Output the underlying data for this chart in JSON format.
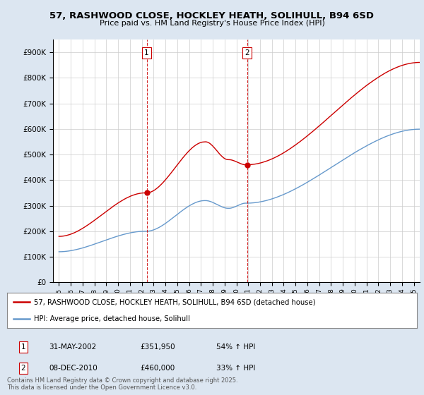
{
  "title": "57, RASHWOOD CLOSE, HOCKLEY HEATH, SOLIHULL, B94 6SD",
  "subtitle": "Price paid vs. HM Land Registry's House Price Index (HPI)",
  "legend_line1": "57, RASHWOOD CLOSE, HOCKLEY HEATH, SOLIHULL, B94 6SD (detached house)",
  "legend_line2": "HPI: Average price, detached house, Solihull",
  "transaction1_date": "31-MAY-2002",
  "transaction1_price": "£351,950",
  "transaction1_hpi": "54% ↑ HPI",
  "transaction2_date": "08-DEC-2010",
  "transaction2_price": "£460,000",
  "transaction2_hpi": "33% ↑ HPI",
  "footer": "Contains HM Land Registry data © Crown copyright and database right 2025.\nThis data is licensed under the Open Government Licence v3.0.",
  "red_color": "#cc0000",
  "blue_color": "#6699cc",
  "background_color": "#dce6f1",
  "plot_bg_color": "#ffffff",
  "ylim": [
    0,
    950000
  ],
  "yticks": [
    0,
    100000,
    200000,
    300000,
    400000,
    500000,
    600000,
    700000,
    800000,
    900000
  ],
  "xlim_start": 1994.5,
  "xlim_end": 2025.5
}
